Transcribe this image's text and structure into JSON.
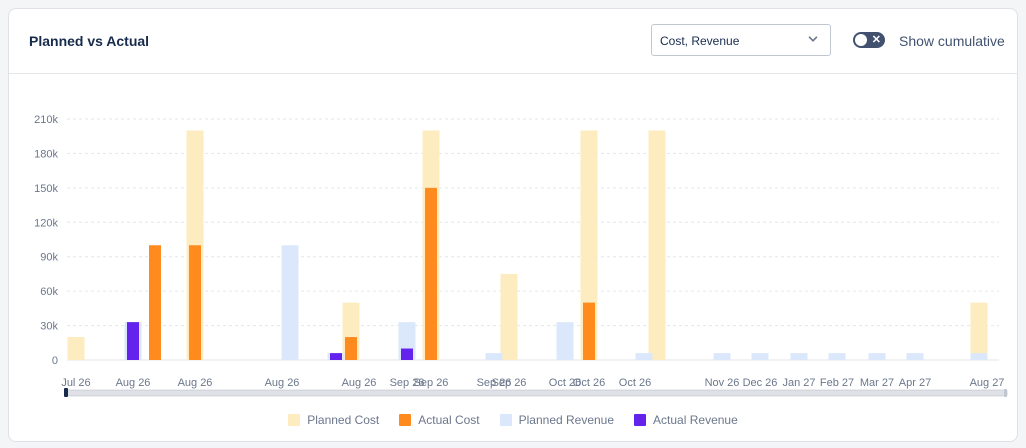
{
  "header": {
    "title": "Planned vs Actual",
    "select_value": "Cost, Revenue",
    "toggle_label": "Show cumulative",
    "toggle_icon": "close-icon",
    "chevron_icon": "chevron-down-icon"
  },
  "legend": [
    {
      "label": "Planned Cost",
      "color": "#fdecbf"
    },
    {
      "label": "Actual Cost",
      "color": "#ff8b1e"
    },
    {
      "label": "Planned Revenue",
      "color": "#dbe8fb"
    },
    {
      "label": "Actual Revenue",
      "color": "#6323ec"
    }
  ],
  "chart_data": {
    "type": "bar",
    "ylim": [
      0,
      210000
    ],
    "yticks": [
      0,
      30000,
      60000,
      90000,
      120000,
      150000,
      180000,
      210000
    ],
    "ytick_labels": [
      "0",
      "30k",
      "60k",
      "90k",
      "120k",
      "150k",
      "180k",
      "210k"
    ],
    "grid": true,
    "legend_position": "bottom",
    "categories": [
      "Jul 26",
      "Aug 26",
      "Aug 26",
      "Aug 26",
      "Aug 26",
      "Aug 26",
      "Aug 26",
      "Sep 26",
      "Sep 26",
      "Sep 26",
      "Sep 26",
      "Oct 26",
      "Oct 26",
      "Oct 26",
      "Oct 26",
      "Nov 26",
      "Dec 26",
      "Jan 27",
      "Feb 27",
      "Mar 27",
      "Apr 27",
      "Aug 27"
    ],
    "series": [
      {
        "name": "Planned Cost",
        "color": "#fdecbf",
        "values": [
          20000,
          0,
          0,
          200000,
          0,
          0,
          50000,
          0,
          200000,
          0,
          75000,
          0,
          200000,
          200000,
          0,
          0,
          0,
          0,
          0,
          0,
          0,
          50000
        ]
      },
      {
        "name": "Actual Cost",
        "color": "#ff8b1e",
        "values": [
          0,
          0,
          100000,
          100000,
          0,
          0,
          20000,
          0,
          150000,
          0,
          0,
          0,
          50000,
          0,
          0,
          0,
          0,
          0,
          0,
          0,
          0,
          0
        ]
      },
      {
        "name": "Planned Revenue",
        "color": "#dbe8fb",
        "values": [
          0,
          33000,
          0,
          0,
          100000,
          6000,
          0,
          33000,
          0,
          6000,
          0,
          33000,
          0,
          0,
          6000,
          6000,
          6000,
          6000,
          6000,
          6000,
          6000,
          6000
        ]
      },
      {
        "name": "Actual Revenue",
        "color": "#6323ec",
        "values": [
          0,
          33000,
          0,
          0,
          0,
          6000,
          0,
          10000,
          0,
          0,
          0,
          0,
          0,
          0,
          0,
          0,
          0,
          0,
          0,
          0,
          0,
          0
        ]
      }
    ],
    "x_labels": [
      {
        "text": "Jul 26",
        "index": 0
      },
      {
        "text": "Aug 26",
        "index": 1
      },
      {
        "text": "Aug 26",
        "index": 3
      },
      {
        "text": "Aug 26",
        "index": 4
      },
      {
        "text": "Aug 26",
        "index": 6
      },
      {
        "text": "Sep 26",
        "index": 7
      },
      {
        "text": "Sep 26",
        "index": 8
      },
      {
        "text": "Sep 26",
        "index": 9
      },
      {
        "text": "Sep 26",
        "index": 10
      },
      {
        "text": "Oct 26",
        "index": 11
      },
      {
        "text": "Oct 26",
        "index": 12
      },
      {
        "text": "Oct 26",
        "index": 14
      },
      {
        "text": "Nov 26",
        "index": 15
      },
      {
        "text": "Dec 26",
        "index": 16
      },
      {
        "text": "Jan 27",
        "index": 17
      },
      {
        "text": "Feb 27",
        "index": 18
      },
      {
        "text": "Mar 27",
        "index": 19
      },
      {
        "text": "Apr 27",
        "index": 20
      },
      {
        "text": "Aug 27",
        "index": 21
      }
    ]
  }
}
